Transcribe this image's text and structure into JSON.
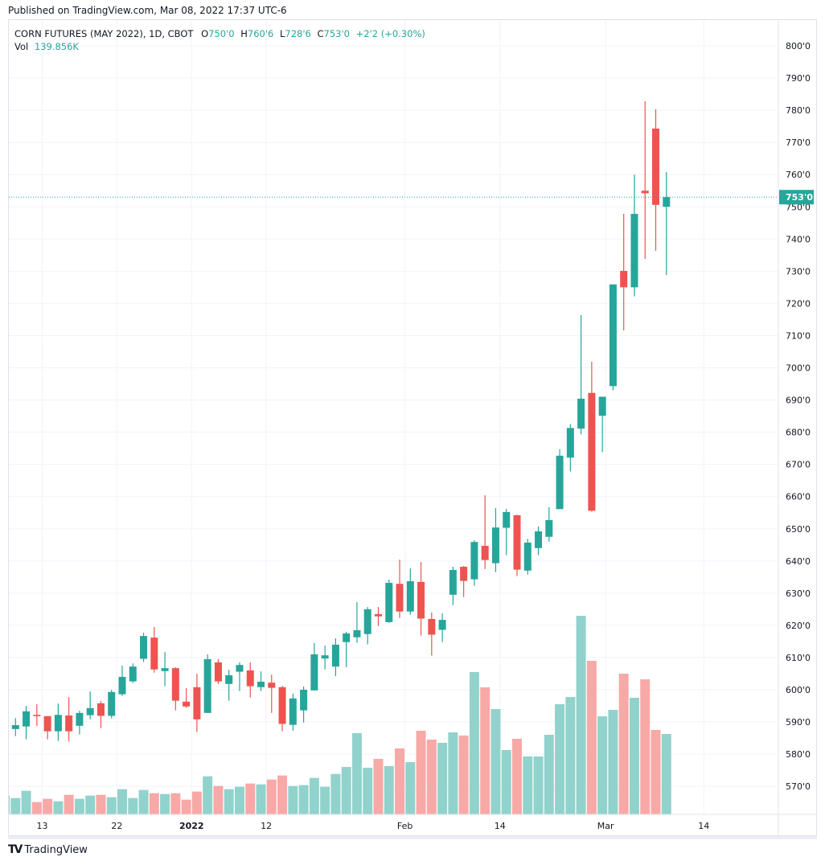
{
  "published": "Published on TradingView.com, Mar 08, 2022 17:37 UTC-6",
  "legend": {
    "symbol": "CORN FUTURES (MAY 2022), 1D, CBOT",
    "o_label": "O",
    "o": "750'0",
    "h_label": "H",
    "h": "760'6",
    "l_label": "L",
    "l": "728'6",
    "c_label": "C",
    "c": "753'0",
    "change": "+2'2 (+0.30%)",
    "vol_label": "Vol",
    "vol": "139.856K"
  },
  "footer_logo": "TradingView",
  "colors": {
    "up": "#26a69a",
    "down": "#ef5350",
    "vol_up": "#92d2cc",
    "vol_down": "#f7a9a7"
  },
  "chart_data": {
    "type": "candlestick",
    "title": "CORN FUTURES (MAY 2022), 1D, CBOT",
    "ylim": [
      562,
      808
    ],
    "y_ticks": [
      570,
      580,
      590,
      600,
      610,
      620,
      630,
      640,
      650,
      660,
      670,
      680,
      690,
      700,
      710,
      720,
      730,
      740,
      750,
      760,
      770,
      780,
      790,
      800
    ],
    "y_tick_labels": [
      "570'0",
      "580'0",
      "590'0",
      "600'0",
      "610'0",
      "620'0",
      "630'0",
      "640'0",
      "650'0",
      "660'0",
      "670'0",
      "680'0",
      "690'0",
      "700'0",
      "710'0",
      "720'0",
      "730'0",
      "740'0",
      "750'0",
      "760'0",
      "770'0",
      "780'0",
      "790'0",
      "800'0"
    ],
    "last_price": 753.0,
    "last_price_label": "753'0",
    "x_ticks": [
      {
        "label": "13",
        "bar": 3.5,
        "bold": false
      },
      {
        "label": "22",
        "bar": 10.5,
        "bold": false
      },
      {
        "label": "2022",
        "bar": 17.5,
        "bold": true
      },
      {
        "label": "12",
        "bar": 24.5,
        "bold": false
      },
      {
        "label": "Feb",
        "bar": 37.5,
        "bold": false
      },
      {
        "label": "14",
        "bar": 46.4,
        "bold": false
      },
      {
        "label": "Mar",
        "bar": 56.3,
        "bold": false
      },
      {
        "label": "14",
        "bar": 65.5,
        "bold": false
      }
    ],
    "volume_unit": "K",
    "candles_columns": [
      "open",
      "high",
      "low",
      "close",
      "volume"
    ],
    "candles": [
      [
        586.3,
        588.5,
        586.3,
        588.5,
        32.6
      ],
      [
        587.8,
        591.2,
        585.6,
        589.0,
        28.4
      ],
      [
        588.6,
        595.0,
        584.6,
        593.3,
        41.0
      ],
      [
        592.2,
        595.5,
        588.8,
        591.8,
        21.4
      ],
      [
        591.8,
        591.8,
        584.6,
        587.1,
        27.0
      ],
      [
        587.1,
        595.7,
        584.1,
        592.2,
        22.8
      ],
      [
        592.0,
        597.7,
        583.9,
        587.1,
        34.0
      ],
      [
        588.8,
        593.5,
        586.1,
        592.8,
        27.0
      ],
      [
        592.1,
        599.5,
        590.8,
        594.3,
        32.6
      ],
      [
        595.8,
        596.5,
        588.1,
        591.9,
        34.0
      ],
      [
        591.9,
        600.0,
        591.1,
        599.3,
        29.8
      ],
      [
        598.6,
        607.5,
        598.1,
        604.0,
        43.8
      ],
      [
        602.6,
        608.2,
        602.1,
        607.2,
        28.4
      ],
      [
        609.6,
        617.7,
        608.6,
        616.7,
        42.4
      ],
      [
        616.2,
        619.5,
        605.3,
        606.3,
        36.8
      ],
      [
        605.8,
        611.7,
        601.1,
        606.7,
        35.4
      ],
      [
        606.7,
        607.0,
        593.6,
        596.6,
        36.8
      ],
      [
        596.3,
        600.5,
        594.4,
        594.8,
        25.6
      ],
      [
        600.8,
        605.0,
        586.9,
        590.8,
        39.6
      ],
      [
        592.8,
        611.0,
        592.8,
        609.5,
        66.2
      ],
      [
        608.5,
        609.5,
        601.8,
        602.6,
        49.4
      ],
      [
        601.8,
        606.2,
        596.6,
        604.5,
        43.8
      ],
      [
        605.6,
        608.5,
        599.6,
        607.7,
        48.0
      ],
      [
        606.0,
        608.5,
        597.6,
        601.1,
        53.6
      ],
      [
        600.8,
        605.7,
        599.6,
        602.5,
        52.2
      ],
      [
        602.2,
        604.7,
        592.8,
        600.6,
        60.6
      ],
      [
        600.8,
        601.2,
        587.1,
        589.4,
        67.6
      ],
      [
        589.1,
        598.8,
        587.3,
        597.3,
        49.4
      ],
      [
        593.6,
        601.0,
        589.8,
        600.0,
        50.8
      ],
      [
        599.8,
        614.5,
        599.8,
        611.0,
        63.4
      ],
      [
        609.7,
        613.7,
        606.3,
        610.7,
        48.0
      ],
      [
        607.2,
        616.0,
        604.2,
        614.0,
        70.4
      ],
      [
        614.8,
        618.0,
        607.0,
        617.5,
        82.5
      ],
      [
        616.3,
        627.2,
        614.6,
        618.5,
        141.3
      ],
      [
        617.3,
        625.7,
        614.1,
        625.0,
        81.1
      ],
      [
        623.5,
        625.7,
        619.8,
        622.8,
        96.5
      ],
      [
        621.0,
        634.2,
        620.8,
        633.2,
        83.9
      ],
      [
        632.9,
        640.4,
        622.3,
        624.3,
        114.7
      ],
      [
        624.3,
        637.7,
        623.3,
        633.7,
        90.9
      ],
      [
        633.5,
        639.7,
        616.8,
        622.1,
        145.5
      ],
      [
        622.0,
        624.0,
        610.6,
        617.1,
        130.1
      ],
      [
        618.6,
        623.7,
        614.8,
        621.7,
        124.5
      ],
      [
        629.5,
        638.2,
        626.3,
        637.2,
        142.7
      ],
      [
        638.2,
        638.4,
        628.8,
        633.8,
        137.1
      ],
      [
        634.3,
        646.4,
        632.3,
        645.9,
        247.6
      ],
      [
        644.7,
        660.4,
        637.5,
        640.3,
        221.0
      ],
      [
        639.3,
        656.4,
        636.5,
        650.4,
        183.2
      ],
      [
        650.3,
        656.2,
        641.8,
        655.2,
        111.9
      ],
      [
        654.2,
        654.4,
        635.3,
        637.3,
        131.5
      ],
      [
        637.0,
        646.9,
        635.8,
        645.7,
        100.7
      ],
      [
        644.0,
        650.7,
        641.8,
        649.2,
        100.7
      ],
      [
        647.5,
        656.7,
        646.0,
        652.7,
        138.5
      ],
      [
        656.1,
        674.7,
        656.1,
        672.7,
        191.6
      ],
      [
        672.1,
        682.5,
        667.8,
        681.3,
        204.2
      ],
      [
        681.1,
        716.4,
        679.3,
        690.4,
        345.5
      ],
      [
        692.2,
        701.9,
        655.3,
        655.6,
        267.1
      ],
      [
        685.1,
        691.0,
        673.8,
        691.0,
        170.6
      ],
      [
        694.3,
        725.9,
        693.0,
        725.9,
        181.8
      ],
      [
        730.1,
        747.8,
        711.6,
        725.0,
        244.8
      ],
      [
        725.0,
        760.0,
        722.2,
        747.8,
        202.8
      ],
      [
        755.0,
        782.8,
        733.8,
        754.2,
        235.0
      ],
      [
        774.3,
        780.3,
        736.3,
        750.6,
        146.9
      ],
      [
        750.0,
        760.8,
        728.8,
        753.0,
        139.856
      ]
    ]
  }
}
